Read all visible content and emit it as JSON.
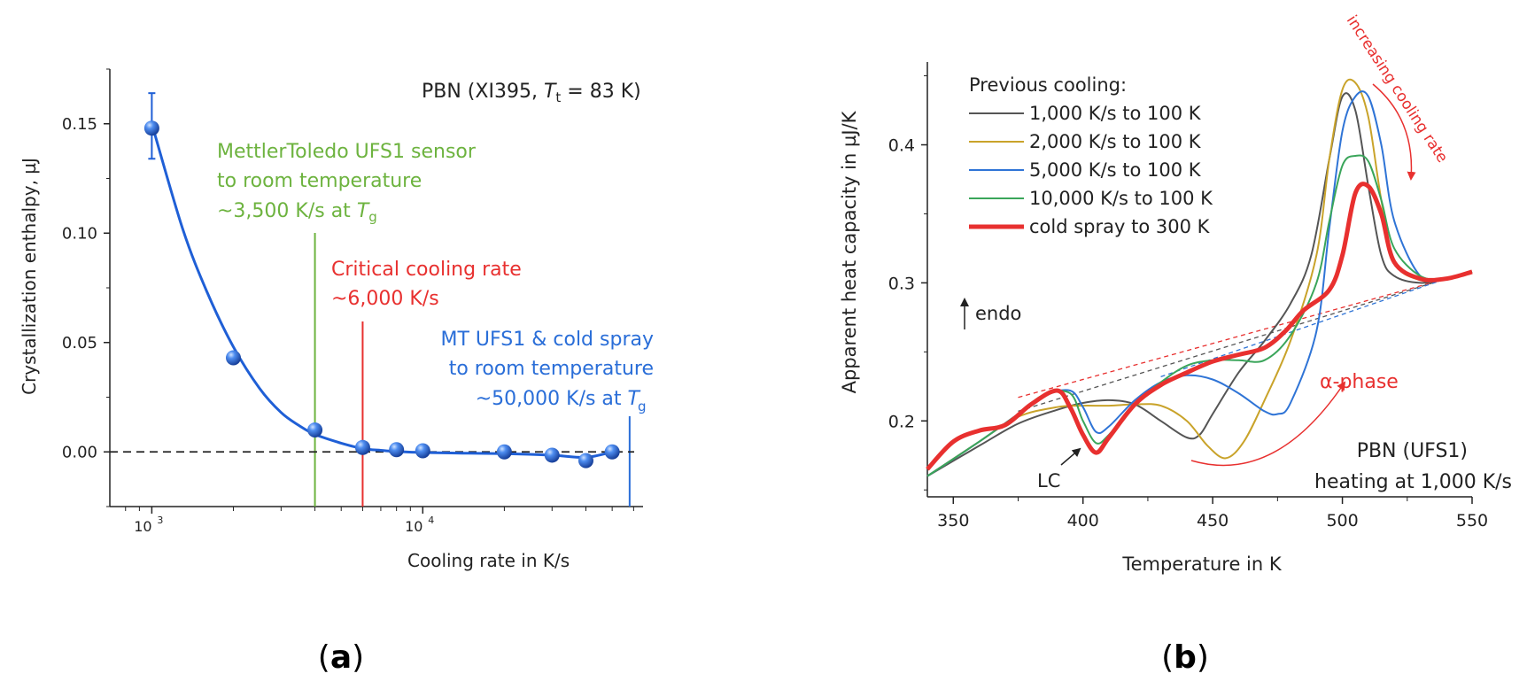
{
  "colors": {
    "fit_line": "#1f5fd6",
    "marker": "#2b6fe0",
    "green": "#6db33f",
    "red": "#e8302f",
    "blue_line": "#2a6ed8",
    "black": "#222222"
  },
  "chart_data": [
    {
      "type": "scatter",
      "panel_label": "a",
      "panel_label_open": "(",
      "panel_label_close": ")",
      "xlabel": "Cooling rate in K/s",
      "ylabel": "Crystallization enthalpy, µJ",
      "xscale": "log",
      "xlim": [
        700,
        65000
      ],
      "ylim": [
        -0.025,
        0.175
      ],
      "xticks": [
        {
          "value": 1000,
          "base": "10",
          "exp": "3"
        },
        {
          "value": 10000,
          "base": "10",
          "exp": "4"
        }
      ],
      "yticks": [
        {
          "value": 0.15,
          "label": "0.15"
        },
        {
          "value": 0.1,
          "label": "0.10"
        },
        {
          "value": 0.05,
          "label": "0.05"
        },
        {
          "value": 0.0,
          "label": "0.00"
        }
      ],
      "series": [
        {
          "name": "measured",
          "x": [
            1000,
            2000,
            4000,
            6000,
            8000,
            10000,
            20000,
            30000,
            40000,
            50000
          ],
          "y": [
            0.148,
            0.043,
            0.01,
            0.002,
            0.001,
            0.0005,
            0.0,
            -0.0015,
            -0.004,
            0.0
          ],
          "error_bar": {
            "x": 1000,
            "low": 0.134,
            "high": 0.164
          }
        }
      ],
      "fit_curve": {
        "x": [
          1000,
          1300,
          1600,
          2000,
          2500,
          3000,
          3500,
          4000,
          5000,
          6000,
          7000,
          8000,
          10000,
          14000,
          20000,
          30000,
          40000,
          50000
        ],
        "y": [
          0.15,
          0.102,
          0.073,
          0.048,
          0.029,
          0.018,
          0.012,
          0.008,
          0.004,
          0.0015,
          0.0007,
          0.0002,
          -0.0003,
          -0.0006,
          -0.0008,
          -0.0015,
          -0.0025,
          0.0
        ]
      },
      "zero_line": 0.0,
      "vlines": [
        {
          "x": 4000,
          "color_key": "green",
          "name": "mettler-line"
        },
        {
          "x": 6000,
          "color_key": "red",
          "name": "critical-line"
        },
        {
          "x": 58000,
          "color_key": "blue_line",
          "name": "cold-spray-line"
        }
      ],
      "annotations": {
        "sample": {
          "pre": "PBN (XI395, ",
          "italic": "T",
          "sub": "t",
          "post": " = 83 K)"
        },
        "mettler": {
          "line1": "MettlerToledo UFS1 sensor",
          "line2": "to room temperature",
          "line3_pre": "~3,500 K/s at ",
          "line3_italic": "T",
          "line3_sub": "g"
        },
        "critical": {
          "line1": "Critical cooling rate",
          "line2": "~6,000 K/s"
        },
        "coldspray": {
          "line1": "MT UFS1 & cold spray",
          "line2": "to room temperature",
          "line3_pre": "~50,000 K/s at ",
          "line3_italic": "T",
          "line3_sub": "g"
        }
      }
    },
    {
      "type": "line",
      "panel_label": "b",
      "panel_label_open": "(",
      "panel_label_close": ")",
      "xlabel": "Temperature in K",
      "ylabel": "Apparent heat capacity in µJ/K",
      "xlim": [
        340,
        550
      ],
      "ylim": [
        0.145,
        0.46
      ],
      "xticks": [
        350,
        400,
        450,
        500,
        550
      ],
      "yticks": [
        {
          "value": 0.2,
          "label": "0.2"
        },
        {
          "value": 0.3,
          "label": "0.3"
        },
        {
          "value": 0.4,
          "label": "0.4"
        }
      ],
      "legend": {
        "title": "Previous cooling:",
        "position": "top-left"
      },
      "series": [
        {
          "name": "1,000 K/s to 100 K",
          "color": "#555555",
          "width": 2,
          "x": [
            340,
            360,
            375,
            390,
            400,
            410,
            420,
            430,
            440,
            445,
            450,
            460,
            470,
            480,
            488,
            495,
            500,
            505,
            510,
            515,
            520,
            530,
            540,
            550
          ],
          "y": [
            0.16,
            0.182,
            0.198,
            0.208,
            0.213,
            0.215,
            0.212,
            0.2,
            0.188,
            0.19,
            0.205,
            0.235,
            0.258,
            0.285,
            0.32,
            0.39,
            0.435,
            0.425,
            0.37,
            0.32,
            0.305,
            0.3,
            0.303,
            0.308
          ]
        },
        {
          "name": "2,000 K/s to 100 K",
          "color": "#c9a32a",
          "width": 2,
          "x": [
            340,
            360,
            375,
            390,
            400,
            410,
            420,
            430,
            440,
            448,
            455,
            462,
            470,
            480,
            490,
            495,
            500,
            505,
            510,
            515,
            520,
            530,
            540,
            550
          ],
          "y": [
            0.16,
            0.185,
            0.203,
            0.21,
            0.211,
            0.211,
            0.212,
            0.211,
            0.2,
            0.182,
            0.173,
            0.185,
            0.215,
            0.258,
            0.32,
            0.39,
            0.44,
            0.445,
            0.42,
            0.36,
            0.315,
            0.302,
            0.303,
            0.308
          ]
        },
        {
          "name": "5,000 K/s to 100 K",
          "color": "#2f74d6",
          "width": 2,
          "x": [
            340,
            360,
            375,
            385,
            395,
            400,
            405,
            410,
            420,
            430,
            440,
            450,
            460,
            470,
            475,
            480,
            490,
            495,
            500,
            505,
            510,
            515,
            520,
            530,
            540,
            550
          ],
          "y": [
            0.16,
            0.185,
            0.205,
            0.218,
            0.222,
            0.21,
            0.192,
            0.196,
            0.215,
            0.228,
            0.233,
            0.23,
            0.22,
            0.207,
            0.205,
            0.213,
            0.265,
            0.34,
            0.41,
            0.435,
            0.435,
            0.4,
            0.345,
            0.305,
            0.303,
            0.308
          ]
        },
        {
          "name": "10,000 K/s to 100 K",
          "color": "#3aa55a",
          "width": 2,
          "x": [
            340,
            360,
            375,
            385,
            395,
            400,
            405,
            410,
            420,
            430,
            440,
            450,
            460,
            470,
            480,
            490,
            495,
            500,
            505,
            510,
            515,
            520,
            530,
            540,
            550
          ],
          "y": [
            0.16,
            0.185,
            0.205,
            0.219,
            0.22,
            0.2,
            0.184,
            0.19,
            0.212,
            0.228,
            0.24,
            0.244,
            0.244,
            0.244,
            0.262,
            0.3,
            0.345,
            0.385,
            0.392,
            0.388,
            0.36,
            0.325,
            0.305,
            0.303,
            0.308
          ]
        },
        {
          "name": "cold spray to 300 K",
          "color": "#e8302f",
          "width": 5,
          "x": [
            340,
            350,
            360,
            370,
            380,
            390,
            395,
            400,
            405,
            410,
            420,
            430,
            440,
            450,
            460,
            470,
            478,
            485,
            495,
            500,
            505,
            510,
            515,
            520,
            530,
            540,
            550
          ],
          "y": [
            0.165,
            0.185,
            0.193,
            0.197,
            0.212,
            0.222,
            0.21,
            0.19,
            0.177,
            0.188,
            0.212,
            0.226,
            0.235,
            0.243,
            0.248,
            0.253,
            0.265,
            0.28,
            0.295,
            0.32,
            0.365,
            0.37,
            0.35,
            0.315,
            0.303,
            0.303,
            0.308
          ]
        }
      ],
      "baselines": [
        {
          "color": "#e8302f",
          "x": [
            375,
            540
          ],
          "y": [
            0.217,
            0.303
          ]
        },
        {
          "color": "#555555",
          "x": [
            375,
            540
          ],
          "y": [
            0.207,
            0.303
          ]
        },
        {
          "color": "#2f74d6",
          "x": [
            430,
            540
          ],
          "y": [
            0.232,
            0.303
          ]
        }
      ],
      "annotations": {
        "endo": "endo",
        "lc": "LC",
        "alpha_phase": "α-phase",
        "increasing": "increasing cooling rate",
        "sample_line1": "PBN (UFS1)",
        "sample_line2": "heating at 1,000 K/s"
      }
    }
  ]
}
